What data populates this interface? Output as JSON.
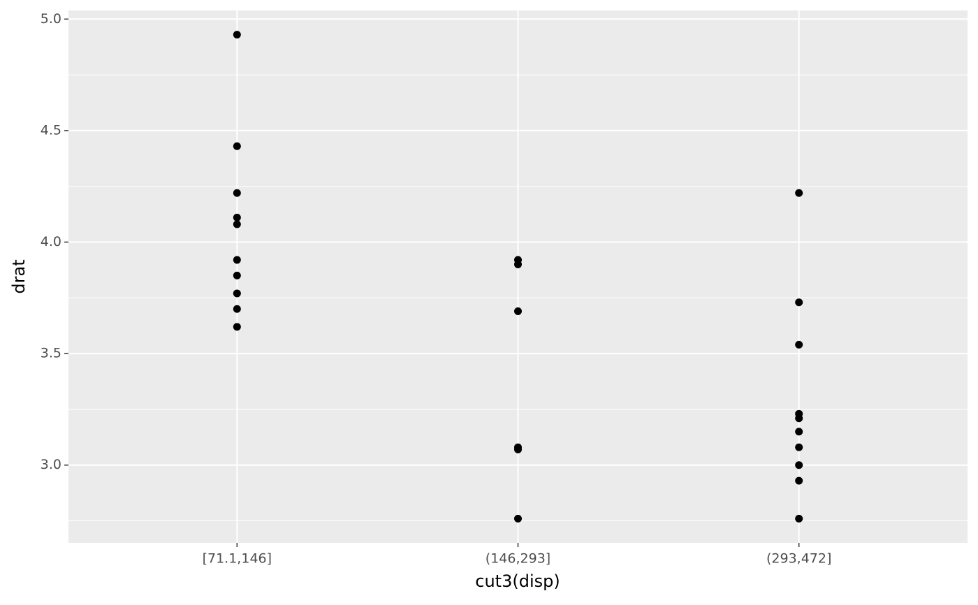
{
  "chart_data": {
    "type": "scatter",
    "x_label": "cut3(disp)",
    "y_label": "drat",
    "categories": [
      "[71.1,146]",
      "(146,293]",
      "(293,472]"
    ],
    "groups": [
      {
        "values": [
          4.93,
          4.43,
          4.22,
          4.11,
          4.08,
          3.92,
          3.85,
          3.77,
          3.7,
          3.62
        ]
      },
      {
        "values": [
          3.92,
          3.9,
          3.69,
          3.08,
          3.07,
          2.76
        ]
      },
      {
        "values": [
          4.22,
          3.73,
          3.54,
          3.23,
          3.21,
          3.15,
          3.08,
          3.0,
          2.93,
          2.76
        ]
      }
    ],
    "color": "#000000",
    "ylim": [
      2.6515,
      5.0385
    ],
    "yticks": [
      {
        "value": 3,
        "label": "3.0"
      },
      3.5,
      {
        "value": 4,
        "label": "4.0"
      },
      4.5,
      {
        "value": 5,
        "label": "5.0"
      }
    ],
    "minor_yticks": [
      2.75,
      3.25,
      3.75,
      4.25,
      4.75
    ],
    "grid": true
  }
}
